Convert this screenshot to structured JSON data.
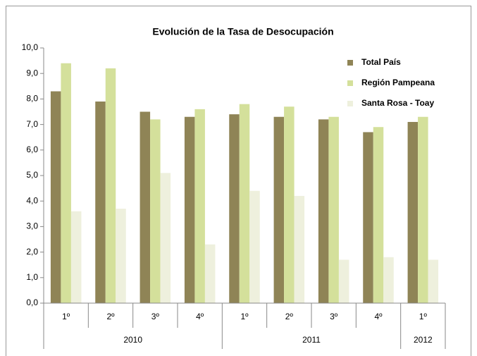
{
  "chart_data": {
    "type": "bar",
    "title": "Evolución de la Tasa de Desocupación",
    "categories": [
      "1º",
      "2º",
      "3º",
      "4º",
      "1º",
      "2º",
      "3º",
      "4º",
      "1º"
    ],
    "groups": [
      {
        "label": "2010",
        "span": 4
      },
      {
        "label": "2011",
        "span": 4
      },
      {
        "label": "2012",
        "span": 1
      }
    ],
    "series": [
      {
        "name": "Total País",
        "color": "#8f8456",
        "values": [
          8.3,
          7.9,
          7.5,
          7.3,
          7.4,
          7.3,
          7.2,
          6.7,
          7.1
        ]
      },
      {
        "name": "Región Pampeana",
        "color": "#d4e09b",
        "values": [
          9.4,
          9.2,
          7.2,
          7.6,
          7.8,
          7.7,
          7.3,
          6.9,
          7.3
        ]
      },
      {
        "name": "Santa Rosa - Toay",
        "color": "#eef0dd",
        "values": [
          3.6,
          3.7,
          5.1,
          2.3,
          4.4,
          4.2,
          1.7,
          1.8,
          1.7
        ]
      }
    ],
    "ylim": [
      0,
      10
    ],
    "yticks": [
      {
        "value": 0,
        "label": "0,0"
      },
      {
        "value": 1,
        "label": "1,0"
      },
      {
        "value": 2,
        "label": "2,0"
      },
      {
        "value": 3,
        "label": "3,0"
      },
      {
        "value": 4,
        "label": "4,0"
      },
      {
        "value": 5,
        "label": "5,0"
      },
      {
        "value": 6,
        "label": "6,0"
      },
      {
        "value": 7,
        "label": "7,0"
      },
      {
        "value": 8,
        "label": "8,0"
      },
      {
        "value": 9,
        "label": "9,0"
      },
      {
        "value": 10,
        "label": "10,0"
      }
    ],
    "legend": "top-right"
  }
}
